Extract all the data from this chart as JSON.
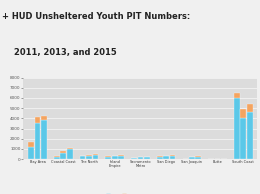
{
  "title_line1": "+ HUD Unsheltered Youth PIT Numbers:",
  "title_line2": "2011, 2013, and 2015",
  "regions": [
    "Bay Area",
    "Coastal Coast",
    "The North",
    "Inland\nEmpire",
    "Sacramento\nMetro",
    "San Diego",
    "San Joaquin",
    "Butte",
    "South Coast"
  ],
  "years": [
    "2011",
    "2013",
    "2015"
  ],
  "try_values": [
    [
      1200,
      3560,
      3843
    ],
    [
      250,
      620,
      950
    ],
    [
      280,
      340,
      370
    ],
    [
      250,
      270,
      290
    ],
    [
      110,
      170,
      200
    ],
    [
      220,
      275,
      305
    ],
    [
      30,
      180,
      210
    ],
    [
      20,
      25,
      30
    ],
    [
      6000,
      4060,
      4640
    ]
  ],
  "unaccomp_values": [
    [
      430,
      560,
      350
    ],
    [
      80,
      150,
      120
    ],
    [
      60,
      80,
      110
    ],
    [
      40,
      60,
      90
    ],
    [
      30,
      40,
      50
    ],
    [
      35,
      50,
      70
    ],
    [
      20,
      40,
      50
    ],
    [
      10,
      15,
      20
    ],
    [
      500,
      890,
      770
    ]
  ],
  "try_color": "#5BC8E8",
  "unaccomp_color": "#F4A460",
  "header_bg": "#F0F0F0",
  "plot_bg_color": "#DCDCDC",
  "title_color": "#222222",
  "plus_color": "#4FC3F7",
  "ylim": [
    0,
    8000
  ],
  "yticks": [
    0,
    1000,
    2000,
    3000,
    4000,
    5000,
    6000,
    7000,
    8000
  ]
}
